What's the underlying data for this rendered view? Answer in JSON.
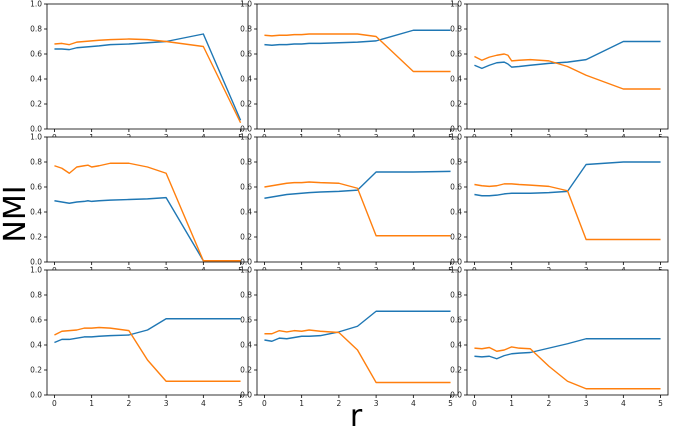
{
  "figure": {
    "ylabel": "NMI",
    "xlabel": "r"
  },
  "colors": {
    "series_a": "#1f77b4",
    "series_b": "#ff7f0e",
    "frame": "#000000"
  },
  "chart_data": {
    "type": "line",
    "layout": "3x3 grid of line subplots",
    "shared_x_ticks": [
      "0",
      "1",
      "2",
      "3",
      "4",
      "5"
    ],
    "shared_y_ticks": [
      "0.0",
      "0.2",
      "0.4",
      "0.6",
      "0.8",
      "1.0"
    ],
    "xlim": [
      -0.2,
      5.2
    ],
    "ylim": [
      0,
      1
    ],
    "grid": false,
    "legend": "none",
    "panels": [
      {
        "series": [
          {
            "color": "#1f77b4",
            "x": [
              0,
              0.2,
              0.4,
              0.6,
              0.8,
              1.0,
              1.2,
              1.5,
              2.0,
              2.5,
              3.0,
              4.0,
              5.0
            ],
            "y": [
              0.64,
              0.64,
              0.635,
              0.65,
              0.655,
              0.66,
              0.665,
              0.675,
              0.68,
              0.69,
              0.7,
              0.76,
              0.07
            ]
          },
          {
            "color": "#ff7f0e",
            "x": [
              0,
              0.2,
              0.4,
              0.6,
              0.8,
              1.0,
              1.2,
              1.5,
              2.0,
              2.5,
              3.0,
              4.0,
              5.0
            ],
            "y": [
              0.68,
              0.685,
              0.675,
              0.695,
              0.7,
              0.705,
              0.71,
              0.715,
              0.72,
              0.715,
              0.7,
              0.66,
              0.05
            ]
          }
        ]
      },
      {
        "series": [
          {
            "color": "#1f77b4",
            "x": [
              0,
              0.2,
              0.4,
              0.6,
              0.8,
              1.0,
              1.2,
              1.5,
              2.0,
              2.5,
              3.0,
              4.0,
              5.0
            ],
            "y": [
              0.675,
              0.67,
              0.675,
              0.675,
              0.68,
              0.68,
              0.685,
              0.685,
              0.69,
              0.695,
              0.705,
              0.79,
              0.79
            ]
          },
          {
            "color": "#ff7f0e",
            "x": [
              0,
              0.2,
              0.4,
              0.6,
              0.8,
              1.0,
              1.2,
              1.5,
              2.0,
              2.5,
              3.0,
              4.0,
              5.0
            ],
            "y": [
              0.75,
              0.745,
              0.75,
              0.75,
              0.755,
              0.755,
              0.76,
              0.76,
              0.76,
              0.76,
              0.74,
              0.46,
              0.46
            ]
          }
        ]
      },
      {
        "series": [
          {
            "color": "#1f77b4",
            "x": [
              0,
              0.2,
              0.4,
              0.6,
              0.8,
              0.9,
              1.0,
              1.2,
              1.5,
              2.0,
              2.5,
              3.0,
              4.0,
              5.0
            ],
            "y": [
              0.51,
              0.485,
              0.51,
              0.53,
              0.535,
              0.52,
              0.495,
              0.5,
              0.51,
              0.525,
              0.535,
              0.555,
              0.7,
              0.7
            ]
          },
          {
            "color": "#ff7f0e",
            "x": [
              0,
              0.2,
              0.4,
              0.6,
              0.8,
              0.9,
              1.0,
              1.2,
              1.5,
              2.0,
              2.5,
              3.0,
              4.0,
              5.0
            ],
            "y": [
              0.58,
              0.55,
              0.575,
              0.59,
              0.6,
              0.59,
              0.545,
              0.55,
              0.555,
              0.545,
              0.5,
              0.43,
              0.32,
              0.32
            ]
          }
        ]
      },
      {
        "series": [
          {
            "color": "#1f77b4",
            "x": [
              0,
              0.2,
              0.4,
              0.6,
              0.8,
              0.9,
              1.0,
              1.2,
              1.5,
              2.0,
              2.5,
              3.0,
              4.0,
              5.0
            ],
            "y": [
              0.49,
              0.48,
              0.47,
              0.48,
              0.485,
              0.49,
              0.485,
              0.49,
              0.495,
              0.5,
              0.505,
              0.515,
              0.01,
              0.01
            ]
          },
          {
            "color": "#ff7f0e",
            "x": [
              0,
              0.2,
              0.4,
              0.6,
              0.8,
              0.9,
              1.0,
              1.2,
              1.5,
              2.0,
              2.5,
              3.0,
              4.0,
              5.0
            ],
            "y": [
              0.77,
              0.75,
              0.71,
              0.76,
              0.77,
              0.775,
              0.76,
              0.77,
              0.79,
              0.79,
              0.76,
              0.71,
              0.01,
              0.01
            ]
          }
        ]
      },
      {
        "series": [
          {
            "color": "#1f77b4",
            "x": [
              0,
              0.2,
              0.4,
              0.6,
              0.8,
              1.0,
              1.2,
              1.5,
              2.0,
              2.5,
              3.0,
              4.0,
              5.0
            ],
            "y": [
              0.51,
              0.52,
              0.53,
              0.54,
              0.545,
              0.55,
              0.555,
              0.56,
              0.565,
              0.575,
              0.72,
              0.72,
              0.725
            ]
          },
          {
            "color": "#ff7f0e",
            "x": [
              0,
              0.2,
              0.4,
              0.6,
              0.8,
              1.0,
              1.2,
              1.5,
              2.0,
              2.5,
              3.0,
              4.0,
              5.0
            ],
            "y": [
              0.6,
              0.61,
              0.62,
              0.63,
              0.635,
              0.635,
              0.64,
              0.635,
              0.63,
              0.59,
              0.21,
              0.21,
              0.21
            ]
          }
        ]
      },
      {
        "series": [
          {
            "color": "#1f77b4",
            "x": [
              0,
              0.2,
              0.4,
              0.6,
              0.8,
              1.0,
              1.2,
              1.5,
              2.0,
              2.5,
              3.0,
              4.0,
              5.0
            ],
            "y": [
              0.54,
              0.53,
              0.53,
              0.535,
              0.545,
              0.55,
              0.55,
              0.55,
              0.555,
              0.565,
              0.78,
              0.8,
              0.8
            ]
          },
          {
            "color": "#ff7f0e",
            "x": [
              0,
              0.2,
              0.4,
              0.6,
              0.8,
              1.0,
              1.2,
              1.5,
              2.0,
              2.5,
              3.0,
              4.0,
              5.0
            ],
            "y": [
              0.62,
              0.61,
              0.605,
              0.61,
              0.625,
              0.625,
              0.62,
              0.615,
              0.605,
              0.57,
              0.18,
              0.18,
              0.18
            ]
          }
        ]
      },
      {
        "series": [
          {
            "color": "#1f77b4",
            "x": [
              0,
              0.2,
              0.4,
              0.6,
              0.8,
              1.0,
              1.2,
              1.5,
              2.0,
              2.5,
              3.0,
              4.0,
              5.0
            ],
            "y": [
              0.42,
              0.445,
              0.445,
              0.455,
              0.465,
              0.465,
              0.47,
              0.475,
              0.48,
              0.52,
              0.61,
              0.61,
              0.61
            ]
          },
          {
            "color": "#ff7f0e",
            "x": [
              0,
              0.2,
              0.4,
              0.6,
              0.8,
              1.0,
              1.2,
              1.5,
              2.0,
              2.5,
              3.0,
              4.0,
              5.0
            ],
            "y": [
              0.48,
              0.51,
              0.515,
              0.52,
              0.535,
              0.535,
              0.54,
              0.535,
              0.515,
              0.28,
              0.11,
              0.11,
              0.11
            ]
          }
        ]
      },
      {
        "series": [
          {
            "color": "#1f77b4",
            "x": [
              0,
              0.2,
              0.4,
              0.6,
              0.8,
              1.0,
              1.2,
              1.5,
              2.0,
              2.5,
              3.0,
              4.0,
              5.0
            ],
            "y": [
              0.44,
              0.43,
              0.455,
              0.45,
              0.46,
              0.47,
              0.47,
              0.475,
              0.505,
              0.55,
              0.67,
              0.67,
              0.67
            ]
          },
          {
            "color": "#ff7f0e",
            "x": [
              0,
              0.2,
              0.4,
              0.6,
              0.8,
              1.0,
              1.2,
              1.5,
              2.0,
              2.5,
              3.0,
              4.0,
              5.0
            ],
            "y": [
              0.49,
              0.49,
              0.515,
              0.505,
              0.515,
              0.51,
              0.52,
              0.51,
              0.5,
              0.36,
              0.1,
              0.1,
              0.1
            ]
          }
        ]
      },
      {
        "series": [
          {
            "color": "#1f77b4",
            "x": [
              0,
              0.2,
              0.4,
              0.6,
              0.8,
              1.0,
              1.2,
              1.5,
              2.0,
              2.5,
              3.0,
              4.0,
              5.0
            ],
            "y": [
              0.31,
              0.305,
              0.31,
              0.29,
              0.315,
              0.33,
              0.335,
              0.34,
              0.375,
              0.41,
              0.45,
              0.45,
              0.45
            ]
          },
          {
            "color": "#ff7f0e",
            "x": [
              0,
              0.2,
              0.4,
              0.6,
              0.8,
              1.0,
              1.2,
              1.5,
              2.0,
              2.5,
              3.0,
              4.0,
              5.0
            ],
            "y": [
              0.375,
              0.37,
              0.38,
              0.35,
              0.36,
              0.385,
              0.375,
              0.37,
              0.23,
              0.11,
              0.05,
              0.05,
              0.05
            ]
          }
        ]
      }
    ]
  }
}
